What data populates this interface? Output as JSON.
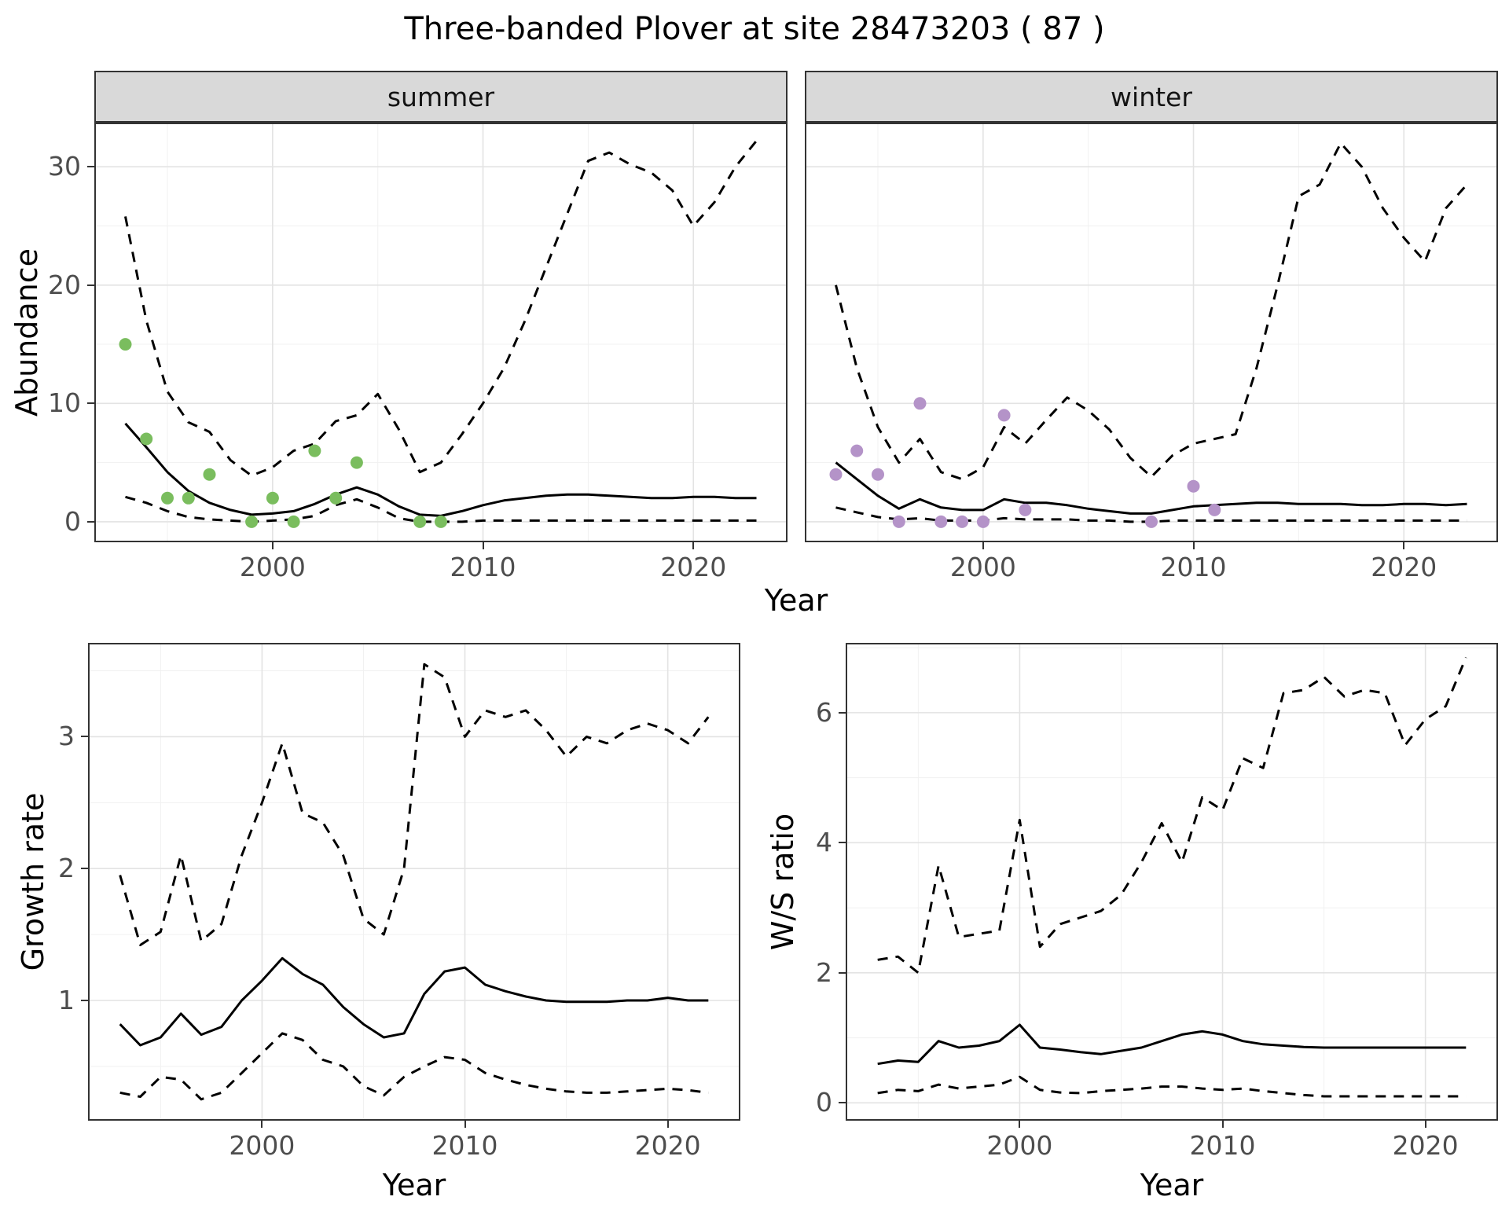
{
  "title": "Three-banded Plover at site 28473203 ( 87 )",
  "colors": {
    "points_summer": "#7abd5e",
    "points_winter": "#b493c8",
    "line": "#000000",
    "grid_major": "#e3e3e3",
    "grid_minor": "#f1f1f1",
    "strip_bg": "#d9d9d9",
    "panel_border": "#333333",
    "tick_label": "#4d4d4d"
  },
  "chart_data": [
    {
      "id": "abundance-summer",
      "type": "line+scatter",
      "facet": "summer",
      "xlabel": "Year",
      "ylabel": "Abundance",
      "xlim": [
        1991.6,
        2024.4
      ],
      "ylim": [
        -1.6,
        33.6
      ],
      "xticks": [
        2000,
        2010,
        2020
      ],
      "yticks": [
        0,
        10,
        20,
        30
      ],
      "xminor": [
        1995,
        2005,
        2015
      ],
      "yminor": [
        5,
        15,
        25
      ],
      "x": [
        1993,
        1994,
        1995,
        1996,
        1997,
        1998,
        1999,
        2000,
        2001,
        2002,
        2003,
        2004,
        2005,
        2006,
        2007,
        2008,
        2009,
        2010,
        2011,
        2012,
        2013,
        2014,
        2015,
        2016,
        2017,
        2018,
        2019,
        2020,
        2021,
        2022,
        2023
      ],
      "series": [
        {
          "name": "median",
          "dash": false,
          "y": [
            8.3,
            6.3,
            4.2,
            2.6,
            1.6,
            1.0,
            0.6,
            0.7,
            0.9,
            1.5,
            2.3,
            2.9,
            2.3,
            1.3,
            0.6,
            0.5,
            0.9,
            1.4,
            1.8,
            2.0,
            2.2,
            2.3,
            2.3,
            2.2,
            2.1,
            2.0,
            2.0,
            2.1,
            2.1,
            2.0,
            2.0
          ]
        },
        {
          "name": "ci_upper",
          "dash": true,
          "y": [
            25.8,
            17.0,
            11.0,
            8.4,
            7.6,
            5.2,
            3.9,
            4.6,
            6.0,
            6.6,
            8.5,
            9.0,
            10.8,
            7.8,
            4.2,
            5.0,
            7.4,
            10.0,
            13.0,
            17.0,
            21.5,
            26.0,
            30.5,
            31.2,
            30.2,
            29.5,
            28.0,
            25.0,
            27.0,
            30.0,
            32.2
          ]
        },
        {
          "name": "ci_lower",
          "dash": true,
          "y": [
            2.1,
            1.6,
            0.9,
            0.4,
            0.2,
            0.1,
            0.0,
            0.1,
            0.2,
            0.5,
            1.4,
            1.9,
            1.2,
            0.3,
            0.0,
            0.0,
            0.0,
            0.1,
            0.1,
            0.1,
            0.1,
            0.1,
            0.1,
            0.1,
            0.1,
            0.1,
            0.1,
            0.1,
            0.1,
            0.1,
            0.1
          ]
        }
      ],
      "points": {
        "name": "observed-counts",
        "color": "#7abd5e",
        "x": [
          1993,
          1994,
          1995,
          1996,
          1997,
          1999,
          2000,
          2001,
          2002,
          2003,
          2004,
          2007,
          2008
        ],
        "y": [
          15,
          7,
          2,
          2,
          4,
          0,
          2,
          0,
          6,
          2,
          5,
          0,
          0
        ]
      }
    },
    {
      "id": "abundance-winter",
      "type": "line+scatter",
      "facet": "winter",
      "xlabel": "Year",
      "ylabel": "Abundance",
      "xlim": [
        1991.6,
        2024.4
      ],
      "ylim": [
        -1.6,
        33.6
      ],
      "xticks": [
        2000,
        2010,
        2020
      ],
      "yticks": [
        0,
        10,
        20,
        30
      ],
      "xminor": [
        1995,
        2005,
        2015
      ],
      "yminor": [
        5,
        15,
        25
      ],
      "x": [
        1993,
        1994,
        1995,
        1996,
        1997,
        1998,
        1999,
        2000,
        2001,
        2002,
        2003,
        2004,
        2005,
        2006,
        2007,
        2008,
        2009,
        2010,
        2011,
        2012,
        2013,
        2014,
        2015,
        2016,
        2017,
        2018,
        2019,
        2020,
        2021,
        2022,
        2023
      ],
      "series": [
        {
          "name": "median",
          "dash": false,
          "y": [
            5.0,
            3.6,
            2.2,
            1.1,
            1.9,
            1.2,
            1.0,
            1.0,
            1.9,
            1.6,
            1.6,
            1.4,
            1.1,
            0.9,
            0.7,
            0.7,
            1.0,
            1.3,
            1.4,
            1.5,
            1.6,
            1.6,
            1.5,
            1.5,
            1.5,
            1.4,
            1.4,
            1.5,
            1.5,
            1.4,
            1.5
          ]
        },
        {
          "name": "ci_upper",
          "dash": true,
          "y": [
            20.0,
            13.0,
            8.0,
            5.0,
            7.0,
            4.2,
            3.6,
            4.6,
            8.0,
            6.6,
            8.6,
            10.5,
            9.4,
            7.8,
            5.4,
            3.8,
            5.6,
            6.6,
            7.0,
            7.4,
            13.0,
            20.0,
            27.5,
            28.5,
            32.0,
            30.0,
            26.5,
            24.0,
            22.0,
            26.5,
            28.5
          ]
        },
        {
          "name": "ci_lower",
          "dash": true,
          "y": [
            1.2,
            0.8,
            0.4,
            0.2,
            0.3,
            0.1,
            0.1,
            0.1,
            0.3,
            0.2,
            0.2,
            0.2,
            0.1,
            0.1,
            0.0,
            0.0,
            0.1,
            0.1,
            0.1,
            0.1,
            0.1,
            0.1,
            0.1,
            0.1,
            0.1,
            0.1,
            0.1,
            0.1,
            0.1,
            0.1,
            0.1
          ]
        }
      ],
      "points": {
        "name": "observed-counts",
        "color": "#b493c8",
        "x": [
          1993,
          1994,
          1995,
          1996,
          1997,
          1998,
          1999,
          2000,
          2001,
          2002,
          2008,
          2010,
          2011
        ],
        "y": [
          4,
          6,
          4,
          0,
          10,
          0,
          0,
          0,
          9,
          1,
          0,
          3,
          1
        ]
      }
    },
    {
      "id": "growth-rate",
      "type": "line",
      "xlabel": "Year",
      "ylabel": "Growth rate",
      "xlim": [
        1991.5,
        2023.5
      ],
      "ylim": [
        0.1,
        3.7
      ],
      "xticks": [
        2000,
        2010,
        2020
      ],
      "yticks": [
        1,
        2,
        3
      ],
      "xminor": [
        1995,
        2005,
        2015
      ],
      "yminor": [
        0.5,
        1.5,
        2.5,
        3.5
      ],
      "x": [
        1993,
        1994,
        1995,
        1996,
        1997,
        1998,
        1999,
        2000,
        2001,
        2002,
        2003,
        2004,
        2005,
        2006,
        2007,
        2008,
        2009,
        2010,
        2011,
        2012,
        2013,
        2014,
        2015,
        2016,
        2017,
        2018,
        2019,
        2020,
        2021,
        2022
      ],
      "series": [
        {
          "name": "median",
          "dash": false,
          "y": [
            0.82,
            0.66,
            0.72,
            0.9,
            0.74,
            0.8,
            1.0,
            1.15,
            1.32,
            1.2,
            1.12,
            0.95,
            0.82,
            0.72,
            0.75,
            1.05,
            1.22,
            1.25,
            1.12,
            1.07,
            1.03,
            1.0,
            0.99,
            0.99,
            0.99,
            1.0,
            1.0,
            1.02,
            1.0,
            1.0
          ]
        },
        {
          "name": "ci_upper",
          "dash": true,
          "y": [
            1.95,
            1.42,
            1.52,
            2.1,
            1.45,
            1.58,
            2.1,
            2.5,
            2.95,
            2.42,
            2.35,
            2.1,
            1.62,
            1.5,
            2.0,
            3.55,
            3.45,
            3.0,
            3.2,
            3.15,
            3.2,
            3.05,
            2.85,
            3.0,
            2.95,
            3.05,
            3.1,
            3.05,
            2.95,
            3.15
          ]
        },
        {
          "name": "ci_lower",
          "dash": true,
          "y": [
            0.3,
            0.27,
            0.42,
            0.4,
            0.25,
            0.3,
            0.45,
            0.6,
            0.75,
            0.7,
            0.55,
            0.5,
            0.35,
            0.28,
            0.42,
            0.5,
            0.57,
            0.55,
            0.45,
            0.4,
            0.36,
            0.33,
            0.31,
            0.3,
            0.3,
            0.31,
            0.32,
            0.33,
            0.32,
            0.3
          ]
        }
      ]
    },
    {
      "id": "ws-ratio",
      "type": "line",
      "xlabel": "Year",
      "ylabel": "W/S ratio",
      "xlim": [
        1991.5,
        2023.5
      ],
      "ylim": [
        -0.25,
        7.05
      ],
      "xticks": [
        2000,
        2010,
        2020
      ],
      "yticks": [
        0,
        2,
        4,
        6
      ],
      "xminor": [
        1995,
        2005,
        2015
      ],
      "yminor": [
        1,
        3,
        5,
        7
      ],
      "x": [
        1993,
        1994,
        1995,
        1996,
        1997,
        1998,
        1999,
        2000,
        2001,
        2002,
        2003,
        2004,
        2005,
        2006,
        2007,
        2008,
        2009,
        2010,
        2011,
        2012,
        2013,
        2014,
        2015,
        2016,
        2017,
        2018,
        2019,
        2020,
        2021,
        2022
      ],
      "series": [
        {
          "name": "median",
          "dash": false,
          "y": [
            0.6,
            0.65,
            0.63,
            0.95,
            0.85,
            0.88,
            0.95,
            1.2,
            0.85,
            0.82,
            0.78,
            0.75,
            0.8,
            0.85,
            0.95,
            1.05,
            1.1,
            1.05,
            0.95,
            0.9,
            0.88,
            0.86,
            0.85,
            0.85,
            0.85,
            0.85,
            0.85,
            0.85,
            0.85,
            0.85
          ]
        },
        {
          "name": "ci_upper",
          "dash": true,
          "y": [
            2.2,
            2.25,
            2.0,
            3.65,
            2.55,
            2.6,
            2.65,
            4.35,
            2.4,
            2.75,
            2.85,
            2.95,
            3.2,
            3.7,
            4.3,
            3.7,
            4.7,
            4.5,
            5.3,
            5.15,
            6.3,
            6.35,
            6.55,
            6.25,
            6.35,
            6.3,
            5.5,
            5.9,
            6.1,
            6.85
          ]
        },
        {
          "name": "ci_lower",
          "dash": true,
          "y": [
            0.15,
            0.2,
            0.18,
            0.28,
            0.22,
            0.25,
            0.28,
            0.4,
            0.2,
            0.16,
            0.15,
            0.18,
            0.2,
            0.22,
            0.25,
            0.25,
            0.22,
            0.2,
            0.22,
            0.18,
            0.15,
            0.12,
            0.1,
            0.1,
            0.1,
            0.1,
            0.1,
            0.1,
            0.1,
            0.1
          ]
        }
      ]
    }
  ]
}
